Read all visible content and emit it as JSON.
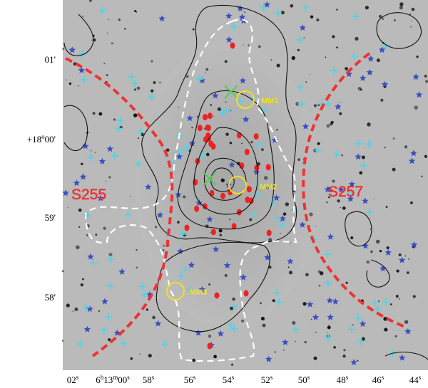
{
  "image": {
    "regions": [
      "S255",
      "S257"
    ],
    "sources": [
      "MM1",
      "MM2",
      "MM3"
    ]
  },
  "axes": {
    "y_ticks": [
      [
        "01'"
      ],
      [
        "+18",
        "o",
        "00'"
      ],
      [
        "59'"
      ],
      [
        "58'"
      ]
    ],
    "x_ticks": [
      [
        "02",
        "s"
      ],
      [
        "6",
        "h",
        "13",
        "m",
        "00",
        "s"
      ],
      [
        "58",
        "s"
      ],
      [
        "56",
        "s"
      ],
      [
        "54",
        "s"
      ],
      [
        "52",
        "s"
      ],
      [
        "50",
        "s"
      ],
      [
        "48",
        "s"
      ],
      [
        "46",
        "s"
      ],
      [
        "44",
        "s"
      ]
    ]
  }
}
